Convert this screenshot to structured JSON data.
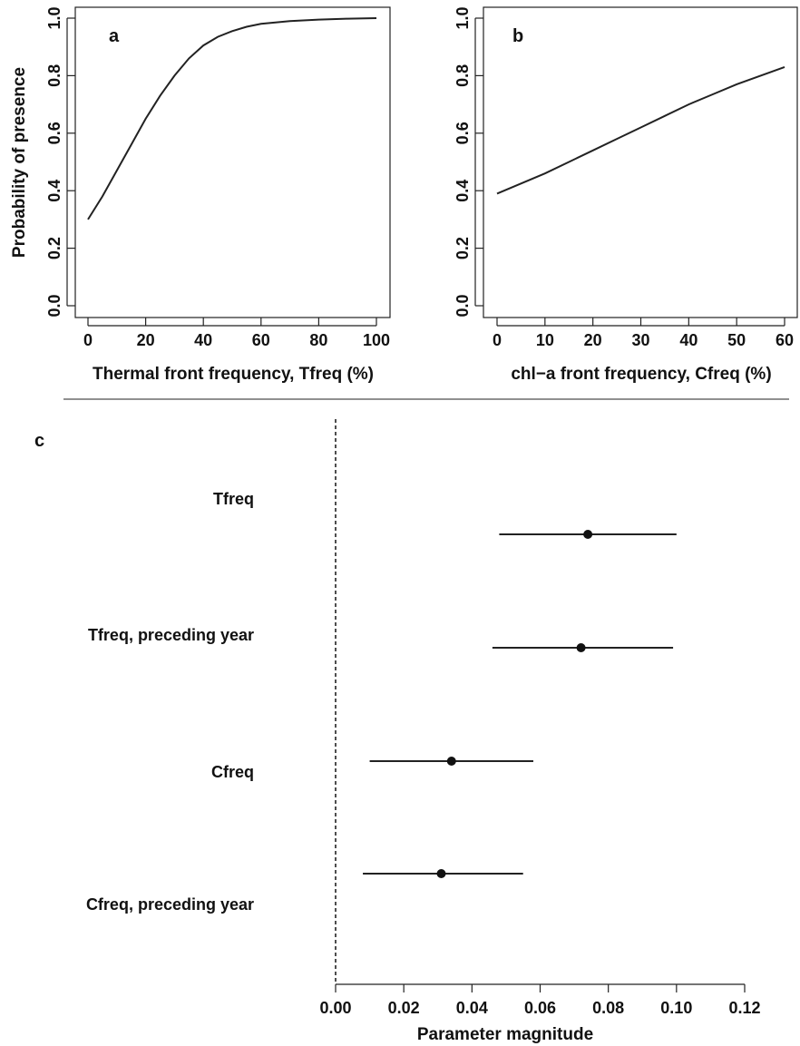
{
  "chart_data": [
    {
      "type": "line",
      "panel": "a",
      "xlabel": "Thermal front frequency, Tfreq (%)",
      "ylabel": "Probability of presence",
      "xlim": [
        0,
        100
      ],
      "ylim": [
        0,
        1
      ],
      "xticks": [
        0,
        20,
        40,
        60,
        80,
        100
      ],
      "yticks": [
        0.0,
        0.2,
        0.4,
        0.6,
        0.8,
        1.0
      ],
      "ytick_labels": [
        "0.0",
        "0.2",
        "0.4",
        "0.6",
        "0.8",
        "1.0"
      ],
      "x": [
        0,
        5,
        10,
        15,
        20,
        25,
        30,
        35,
        40,
        45,
        50,
        55,
        60,
        70,
        80,
        90,
        100
      ],
      "y": [
        0.3,
        0.38,
        0.47,
        0.56,
        0.65,
        0.73,
        0.8,
        0.86,
        0.905,
        0.935,
        0.955,
        0.97,
        0.98,
        0.99,
        0.995,
        0.998,
        1.0
      ]
    },
    {
      "type": "line",
      "panel": "b",
      "xlabel": "chl−a front frequency, Cfreq (%)",
      "ylabel": "",
      "xlim": [
        0,
        60
      ],
      "ylim": [
        0,
        1
      ],
      "xticks": [
        0,
        10,
        20,
        30,
        40,
        50,
        60
      ],
      "yticks": [
        0.0,
        0.2,
        0.4,
        0.6,
        0.8,
        1.0
      ],
      "ytick_labels": [
        "0.0",
        "0.2",
        "0.4",
        "0.6",
        "0.8",
        "1.0"
      ],
      "x": [
        0,
        5,
        10,
        15,
        20,
        25,
        30,
        35,
        40,
        45,
        50,
        55,
        60
      ],
      "y": [
        0.39,
        0.425,
        0.46,
        0.5,
        0.54,
        0.58,
        0.62,
        0.66,
        0.7,
        0.735,
        0.77,
        0.8,
        0.83
      ]
    },
    {
      "type": "scatter",
      "panel": "c",
      "xlabel": "Parameter magnitude",
      "ylabel": "",
      "xlim": [
        0,
        0.12
      ],
      "xticks": [
        0,
        0.02,
        0.04,
        0.06,
        0.08,
        0.1,
        0.12
      ],
      "xtick_labels": [
        "0.00",
        "0.02",
        "0.04",
        "0.06",
        "0.08",
        "0.10",
        "0.12"
      ],
      "reference_line_x": 0,
      "categories": [
        "Tfreq",
        "Tfreq, preceding year",
        "Cfreq",
        "Cfreq, preceding year"
      ],
      "estimates": [
        0.074,
        0.072,
        0.034,
        0.031
      ],
      "lower": [
        0.048,
        0.046,
        0.01,
        0.008
      ],
      "upper": [
        0.1,
        0.099,
        0.058,
        0.055
      ]
    }
  ]
}
